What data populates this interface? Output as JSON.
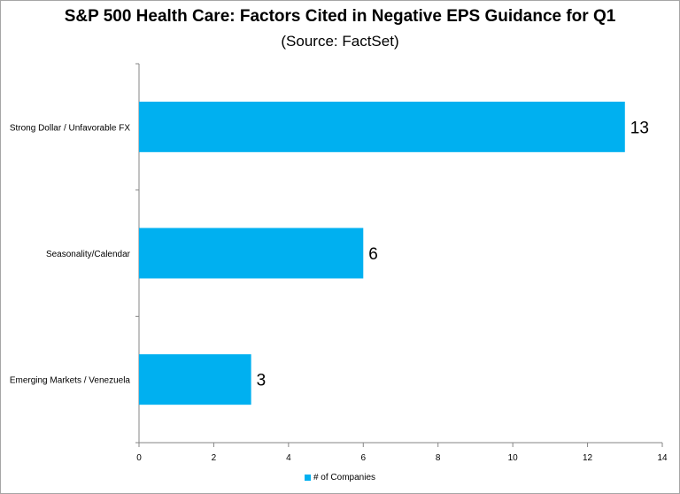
{
  "chart_data": {
    "type": "bar",
    "orientation": "horizontal",
    "title": "S&P 500 Health Care: Factors Cited in Negative EPS Guidance for Q1",
    "subtitle": "(Source: FactSet)",
    "categories": [
      "Strong Dollar / Unfavorable FX",
      "Seasonality/Calendar",
      "Emerging Markets / Venezuela"
    ],
    "series": [
      {
        "name": "# of Companies",
        "values": [
          13,
          6,
          3
        ],
        "color": "#00b0f0"
      }
    ],
    "xlim": [
      0,
      14
    ],
    "xticks": [
      0,
      2,
      4,
      6,
      8,
      10,
      12,
      14
    ],
    "grid": false,
    "legend": "bottom",
    "data_labels": true
  }
}
